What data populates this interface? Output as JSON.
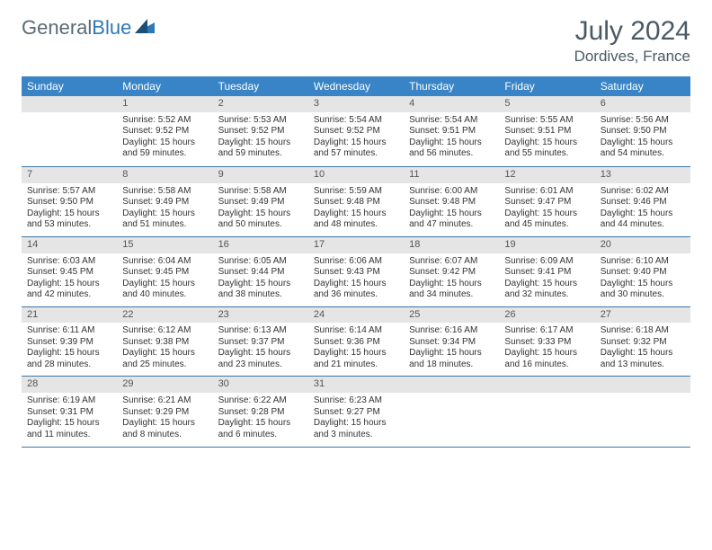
{
  "logo": {
    "part1": "General",
    "part2": "Blue"
  },
  "title": "July 2024",
  "location": "Dordives, France",
  "dayHeaders": [
    "Sunday",
    "Monday",
    "Tuesday",
    "Wednesday",
    "Thursday",
    "Friday",
    "Saturday"
  ],
  "colors": {
    "headerBg": "#3984c6",
    "headerText": "#ffffff",
    "dayNumBg": "#e5e5e5",
    "rowBorder": "#3b77a8",
    "titleColor": "#4a5a64",
    "logoGray": "#5a6a74",
    "logoBlue": "#2f78b7"
  },
  "weeks": [
    [
      null,
      {
        "n": "1",
        "sunrise": "Sunrise: 5:52 AM",
        "sunset": "Sunset: 9:52 PM",
        "day1": "Daylight: 15 hours",
        "day2": "and 59 minutes."
      },
      {
        "n": "2",
        "sunrise": "Sunrise: 5:53 AM",
        "sunset": "Sunset: 9:52 PM",
        "day1": "Daylight: 15 hours",
        "day2": "and 59 minutes."
      },
      {
        "n": "3",
        "sunrise": "Sunrise: 5:54 AM",
        "sunset": "Sunset: 9:52 PM",
        "day1": "Daylight: 15 hours",
        "day2": "and 57 minutes."
      },
      {
        "n": "4",
        "sunrise": "Sunrise: 5:54 AM",
        "sunset": "Sunset: 9:51 PM",
        "day1": "Daylight: 15 hours",
        "day2": "and 56 minutes."
      },
      {
        "n": "5",
        "sunrise": "Sunrise: 5:55 AM",
        "sunset": "Sunset: 9:51 PM",
        "day1": "Daylight: 15 hours",
        "day2": "and 55 minutes."
      },
      {
        "n": "6",
        "sunrise": "Sunrise: 5:56 AM",
        "sunset": "Sunset: 9:50 PM",
        "day1": "Daylight: 15 hours",
        "day2": "and 54 minutes."
      }
    ],
    [
      {
        "n": "7",
        "sunrise": "Sunrise: 5:57 AM",
        "sunset": "Sunset: 9:50 PM",
        "day1": "Daylight: 15 hours",
        "day2": "and 53 minutes."
      },
      {
        "n": "8",
        "sunrise": "Sunrise: 5:58 AM",
        "sunset": "Sunset: 9:49 PM",
        "day1": "Daylight: 15 hours",
        "day2": "and 51 minutes."
      },
      {
        "n": "9",
        "sunrise": "Sunrise: 5:58 AM",
        "sunset": "Sunset: 9:49 PM",
        "day1": "Daylight: 15 hours",
        "day2": "and 50 minutes."
      },
      {
        "n": "10",
        "sunrise": "Sunrise: 5:59 AM",
        "sunset": "Sunset: 9:48 PM",
        "day1": "Daylight: 15 hours",
        "day2": "and 48 minutes."
      },
      {
        "n": "11",
        "sunrise": "Sunrise: 6:00 AM",
        "sunset": "Sunset: 9:48 PM",
        "day1": "Daylight: 15 hours",
        "day2": "and 47 minutes."
      },
      {
        "n": "12",
        "sunrise": "Sunrise: 6:01 AM",
        "sunset": "Sunset: 9:47 PM",
        "day1": "Daylight: 15 hours",
        "day2": "and 45 minutes."
      },
      {
        "n": "13",
        "sunrise": "Sunrise: 6:02 AM",
        "sunset": "Sunset: 9:46 PM",
        "day1": "Daylight: 15 hours",
        "day2": "and 44 minutes."
      }
    ],
    [
      {
        "n": "14",
        "sunrise": "Sunrise: 6:03 AM",
        "sunset": "Sunset: 9:45 PM",
        "day1": "Daylight: 15 hours",
        "day2": "and 42 minutes."
      },
      {
        "n": "15",
        "sunrise": "Sunrise: 6:04 AM",
        "sunset": "Sunset: 9:45 PM",
        "day1": "Daylight: 15 hours",
        "day2": "and 40 minutes."
      },
      {
        "n": "16",
        "sunrise": "Sunrise: 6:05 AM",
        "sunset": "Sunset: 9:44 PM",
        "day1": "Daylight: 15 hours",
        "day2": "and 38 minutes."
      },
      {
        "n": "17",
        "sunrise": "Sunrise: 6:06 AM",
        "sunset": "Sunset: 9:43 PM",
        "day1": "Daylight: 15 hours",
        "day2": "and 36 minutes."
      },
      {
        "n": "18",
        "sunrise": "Sunrise: 6:07 AM",
        "sunset": "Sunset: 9:42 PM",
        "day1": "Daylight: 15 hours",
        "day2": "and 34 minutes."
      },
      {
        "n": "19",
        "sunrise": "Sunrise: 6:09 AM",
        "sunset": "Sunset: 9:41 PM",
        "day1": "Daylight: 15 hours",
        "day2": "and 32 minutes."
      },
      {
        "n": "20",
        "sunrise": "Sunrise: 6:10 AM",
        "sunset": "Sunset: 9:40 PM",
        "day1": "Daylight: 15 hours",
        "day2": "and 30 minutes."
      }
    ],
    [
      {
        "n": "21",
        "sunrise": "Sunrise: 6:11 AM",
        "sunset": "Sunset: 9:39 PM",
        "day1": "Daylight: 15 hours",
        "day2": "and 28 minutes."
      },
      {
        "n": "22",
        "sunrise": "Sunrise: 6:12 AM",
        "sunset": "Sunset: 9:38 PM",
        "day1": "Daylight: 15 hours",
        "day2": "and 25 minutes."
      },
      {
        "n": "23",
        "sunrise": "Sunrise: 6:13 AM",
        "sunset": "Sunset: 9:37 PM",
        "day1": "Daylight: 15 hours",
        "day2": "and 23 minutes."
      },
      {
        "n": "24",
        "sunrise": "Sunrise: 6:14 AM",
        "sunset": "Sunset: 9:36 PM",
        "day1": "Daylight: 15 hours",
        "day2": "and 21 minutes."
      },
      {
        "n": "25",
        "sunrise": "Sunrise: 6:16 AM",
        "sunset": "Sunset: 9:34 PM",
        "day1": "Daylight: 15 hours",
        "day2": "and 18 minutes."
      },
      {
        "n": "26",
        "sunrise": "Sunrise: 6:17 AM",
        "sunset": "Sunset: 9:33 PM",
        "day1": "Daylight: 15 hours",
        "day2": "and 16 minutes."
      },
      {
        "n": "27",
        "sunrise": "Sunrise: 6:18 AM",
        "sunset": "Sunset: 9:32 PM",
        "day1": "Daylight: 15 hours",
        "day2": "and 13 minutes."
      }
    ],
    [
      {
        "n": "28",
        "sunrise": "Sunrise: 6:19 AM",
        "sunset": "Sunset: 9:31 PM",
        "day1": "Daylight: 15 hours",
        "day2": "and 11 minutes."
      },
      {
        "n": "29",
        "sunrise": "Sunrise: 6:21 AM",
        "sunset": "Sunset: 9:29 PM",
        "day1": "Daylight: 15 hours",
        "day2": "and 8 minutes."
      },
      {
        "n": "30",
        "sunrise": "Sunrise: 6:22 AM",
        "sunset": "Sunset: 9:28 PM",
        "day1": "Daylight: 15 hours",
        "day2": "and 6 minutes."
      },
      {
        "n": "31",
        "sunrise": "Sunrise: 6:23 AM",
        "sunset": "Sunset: 9:27 PM",
        "day1": "Daylight: 15 hours",
        "day2": "and 3 minutes."
      },
      null,
      null,
      null
    ]
  ]
}
